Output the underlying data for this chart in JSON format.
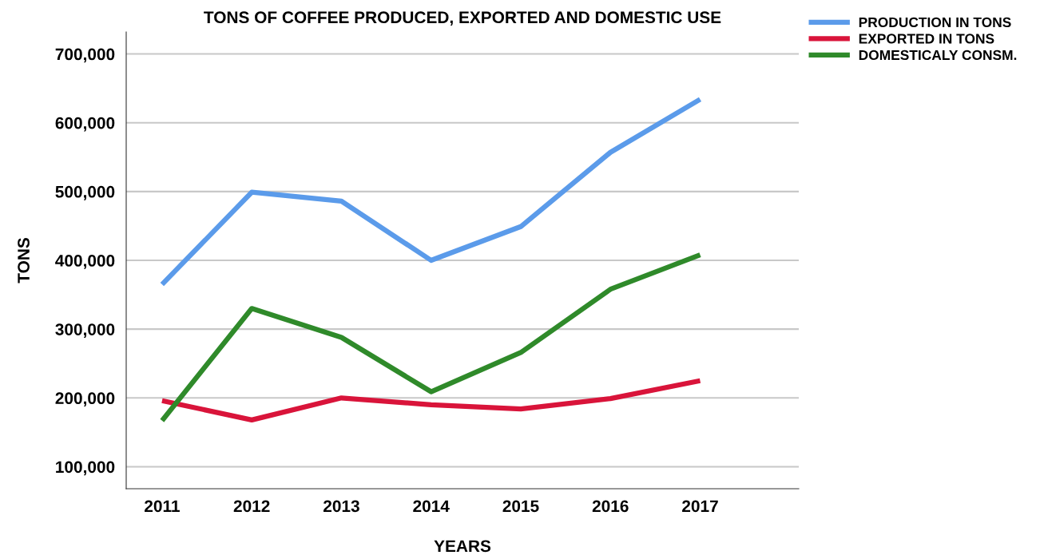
{
  "chart_data": {
    "type": "line",
    "title": "TONS OF COFFEE PRODUCED, EXPORTED AND DOMESTIC USE",
    "xlabel": "YEARS",
    "ylabel": "TONS",
    "x": [
      2011,
      2012,
      2013,
      2014,
      2015,
      2016,
      2017
    ],
    "xlim": [
      2010.6,
      2018.1
    ],
    "xticks": [
      2011,
      2012,
      2013,
      2014,
      2015,
      2016,
      2017
    ],
    "ylim": [
      68000,
      732000
    ],
    "yticks": [
      {
        "value": 100000,
        "label": "100,000"
      },
      {
        "value": 200000,
        "label": "200,000"
      },
      {
        "value": 300000,
        "label": "300,000"
      },
      {
        "value": 400000,
        "label": "400,000"
      },
      {
        "value": 500000,
        "label": "500,000"
      },
      {
        "value": 600000,
        "label": "600,000"
      },
      {
        "value": 700000,
        "label": "700,000"
      }
    ],
    "grid": "y",
    "legend": "top right",
    "marker": "none",
    "line_style": "solid",
    "series": [
      {
        "name": "PRODUCTION IN TONS",
        "color": "#5b9bea",
        "values": [
          365000,
          499000,
          486000,
          400000,
          449000,
          557000,
          634000
        ]
      },
      {
        "name": "EXPORTED IN TONS",
        "color": "#d9143a",
        "values": [
          196000,
          168000,
          200000,
          190000,
          184000,
          199000,
          225000
        ]
      },
      {
        "name": "DOMESTICALY CONSM.",
        "color": "#2f8a2a",
        "values": [
          167000,
          330000,
          288000,
          209000,
          266000,
          358000,
          408000
        ]
      }
    ]
  }
}
